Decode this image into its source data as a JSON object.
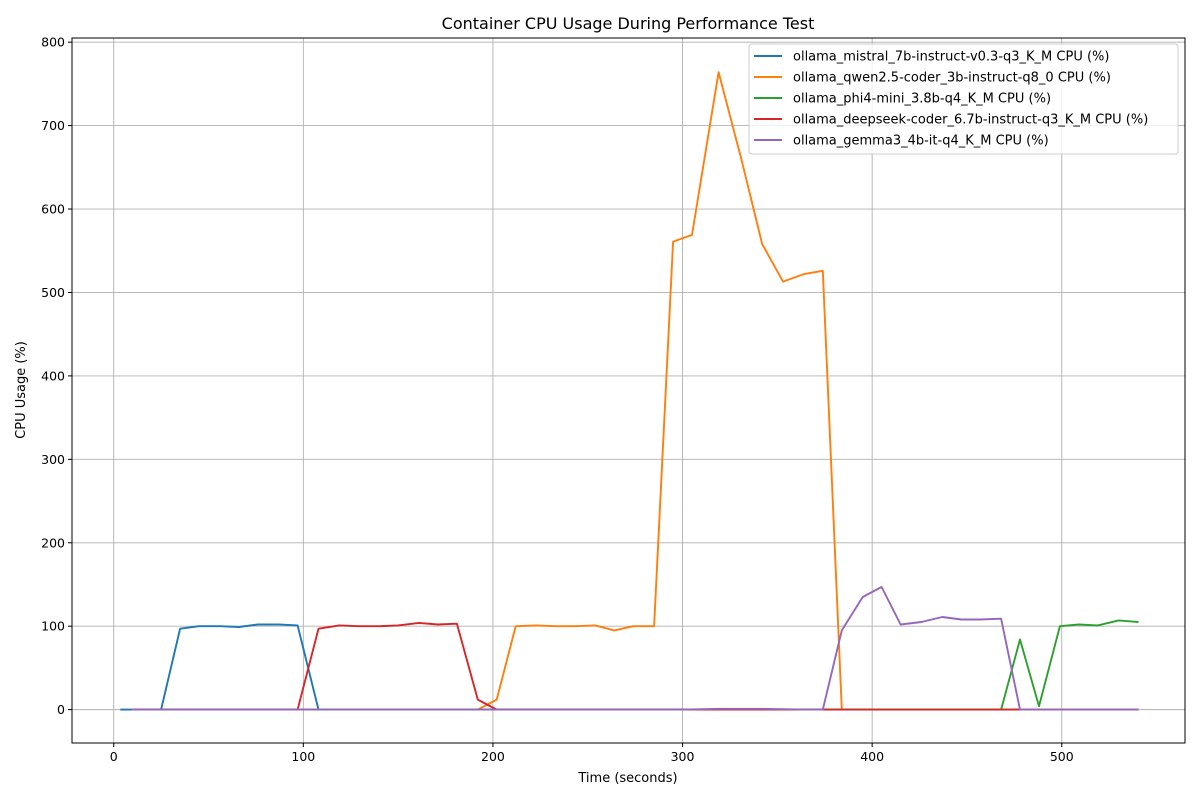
{
  "chart_data": {
    "type": "line",
    "title": "Container CPU Usage During Performance Test",
    "xlabel": "Time (seconds)",
    "ylabel": "CPU Usage (%)",
    "xlim": [
      -22,
      565
    ],
    "ylim": [
      -40,
      805
    ],
    "xticks": [
      0,
      100,
      200,
      300,
      400,
      500
    ],
    "yticks": [
      0,
      100,
      200,
      300,
      400,
      500,
      600,
      700,
      800
    ],
    "grid": true,
    "legend_position": "top-right",
    "series": [
      {
        "name": "ollama_mistral_7b-instruct-v0.3-q3_K_M CPU (%)",
        "color": "#1f77b4",
        "x": [
          4,
          14,
          25,
          35,
          45,
          56,
          66,
          76,
          87,
          97,
          108,
          118,
          540
        ],
        "y": [
          0,
          0,
          0,
          97,
          100,
          100,
          99,
          102,
          102,
          101,
          0,
          0,
          0
        ]
      },
      {
        "name": "ollama_qwen2.5-coder_3b-instruct-q8_0 CPU (%)",
        "color": "#ff7f0e",
        "x": [
          10,
          192,
          202,
          212,
          223,
          233,
          243,
          254,
          264,
          274,
          285,
          295,
          305,
          319,
          331,
          342,
          353,
          364,
          374,
          384,
          394,
          540
        ],
        "y": [
          0,
          0,
          12,
          100,
          101,
          100,
          100,
          101,
          95,
          100,
          100,
          561,
          569,
          764,
          660,
          558,
          513,
          522,
          526,
          0,
          0,
          0
        ]
      },
      {
        "name": "ollama_phi4-mini_3.8b-q4_K_M CPU (%)",
        "color": "#2ca02c",
        "x": [
          10,
          468,
          478,
          488,
          499,
          509,
          519,
          530,
          540
        ],
        "y": [
          0,
          0,
          84,
          4,
          100,
          102,
          101,
          107,
          105
        ]
      },
      {
        "name": "ollama_deepseek-coder_6.7b-instruct-q3_K_M CPU (%)",
        "color": "#d62728",
        "x": [
          10,
          97,
          108,
          119,
          129,
          140,
          150,
          161,
          171,
          181,
          192,
          202,
          212,
          478
        ],
        "y": [
          0,
          0,
          97,
          101,
          100,
          100,
          101,
          104,
          102,
          103,
          12,
          0,
          0,
          0
        ]
      },
      {
        "name": "ollama_gemma3_4b-it-q4_K_M CPU (%)",
        "color": "#9467bd",
        "x": [
          10,
          300,
          320,
          342,
          364,
          374,
          384,
          395,
          405,
          415,
          426,
          437,
          447,
          457,
          468,
          478,
          540
        ],
        "y": [
          0,
          0,
          1,
          1,
          0,
          0,
          95,
          135,
          147,
          102,
          105,
          111,
          108,
          108,
          109,
          0,
          0
        ]
      }
    ]
  }
}
